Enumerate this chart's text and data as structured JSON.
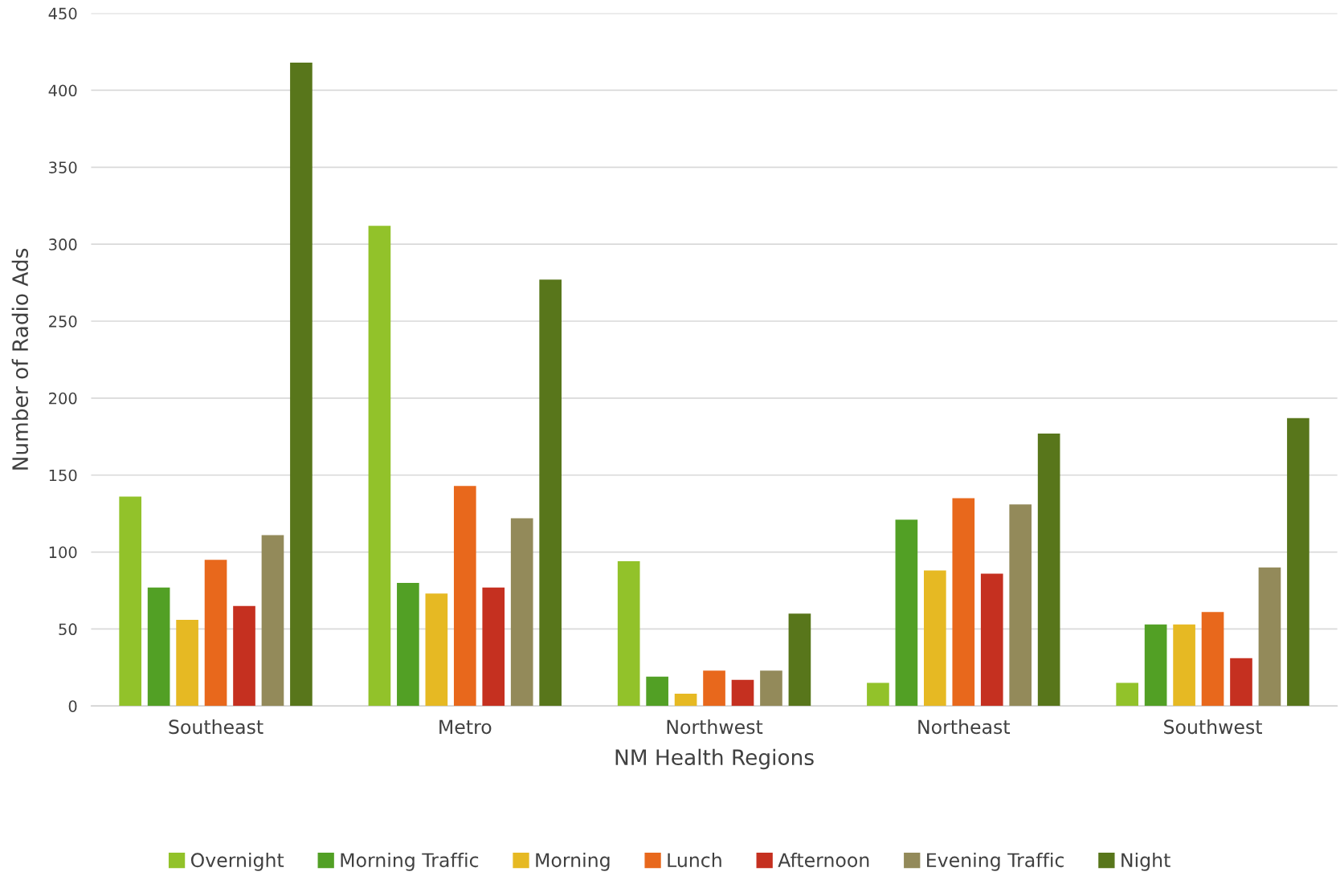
{
  "chart_data": {
    "type": "bar",
    "xlabel": "NM Health Regions",
    "ylabel": "Number of Radio Ads",
    "categories": [
      "Southeast",
      "Metro",
      "Northwest",
      "Northeast",
      "Southwest"
    ],
    "series": [
      {
        "name": "Overnight",
        "color": "#92c22a",
        "values": [
          136,
          312,
          94,
          15,
          15
        ]
      },
      {
        "name": "Morning Traffic",
        "color": "#52a025",
        "values": [
          77,
          80,
          19,
          121,
          53
        ]
      },
      {
        "name": "Morning",
        "color": "#e6b923",
        "values": [
          56,
          73,
          8,
          88,
          53
        ]
      },
      {
        "name": "Lunch",
        "color": "#e8681c",
        "values": [
          95,
          143,
          23,
          135,
          61
        ]
      },
      {
        "name": "Afternoon",
        "color": "#c53020",
        "values": [
          65,
          77,
          17,
          86,
          31
        ]
      },
      {
        "name": "Evening Traffic",
        "color": "#938a5a",
        "values": [
          111,
          122,
          23,
          131,
          90
        ]
      },
      {
        "name": "Night",
        "color": "#58761b",
        "values": [
          418,
          277,
          60,
          177,
          187
        ]
      }
    ],
    "ylim": [
      0,
      450
    ],
    "yticks": [
      0,
      50,
      100,
      150,
      200,
      250,
      300,
      350,
      400,
      450
    ],
    "grid": "y",
    "legend": "bottom"
  }
}
